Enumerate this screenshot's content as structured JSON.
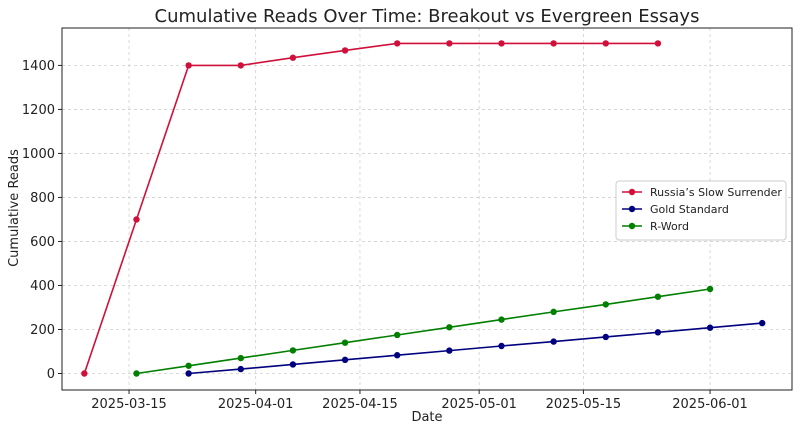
{
  "chart_data": {
    "type": "line",
    "title": "Cumulative Reads Over Time: Breakout vs Evergreen Essays",
    "xlabel": "Date",
    "ylabel": "Cumulative Reads",
    "x_ticks": [
      "2025-03-15",
      "2025-04-01",
      "2025-04-15",
      "2025-05-01",
      "2025-05-15",
      "2025-06-01"
    ],
    "y_ticks": [
      0,
      200,
      400,
      600,
      800,
      1000,
      1200,
      1400
    ],
    "xlim": [
      "2025-03-06",
      "2025-06-12"
    ],
    "ylim": [
      -75,
      1570
    ],
    "grid": true,
    "legend_position": "center-right",
    "series": [
      {
        "name": "Russia’s Slow Surrender",
        "color": "#d0103a",
        "x": [
          "2025-03-09",
          "2025-03-16",
          "2025-03-23",
          "2025-03-30",
          "2025-04-06",
          "2025-04-13",
          "2025-04-20",
          "2025-04-27",
          "2025-05-04",
          "2025-05-11",
          "2025-05-18",
          "2025-05-25"
        ],
        "y": [
          0,
          700,
          1400,
          1400,
          1435,
          1468,
          1500,
          1500,
          1500,
          1500,
          1500,
          1500
        ]
      },
      {
        "name": "Gold Standard",
        "color": "#00007f",
        "x": [
          "2025-03-23",
          "2025-03-30",
          "2025-04-06",
          "2025-04-13",
          "2025-04-20",
          "2025-04-27",
          "2025-05-04",
          "2025-05-11",
          "2025-05-18",
          "2025-05-25",
          "2025-06-01",
          "2025-06-08"
        ],
        "y": [
          0,
          20,
          41,
          62,
          83,
          104,
          125,
          145,
          166,
          187,
          208,
          229
        ]
      },
      {
        "name": "R-Word",
        "color": "#007f00",
        "x": [
          "2025-03-16",
          "2025-03-23",
          "2025-03-30",
          "2025-04-06",
          "2025-04-13",
          "2025-04-20",
          "2025-04-27",
          "2025-05-04",
          "2025-05-11",
          "2025-05-18",
          "2025-05-25",
          "2025-06-01"
        ],
        "y": [
          0,
          35,
          70,
          105,
          140,
          175,
          210,
          245,
          280,
          314,
          349,
          384
        ]
      }
    ]
  }
}
